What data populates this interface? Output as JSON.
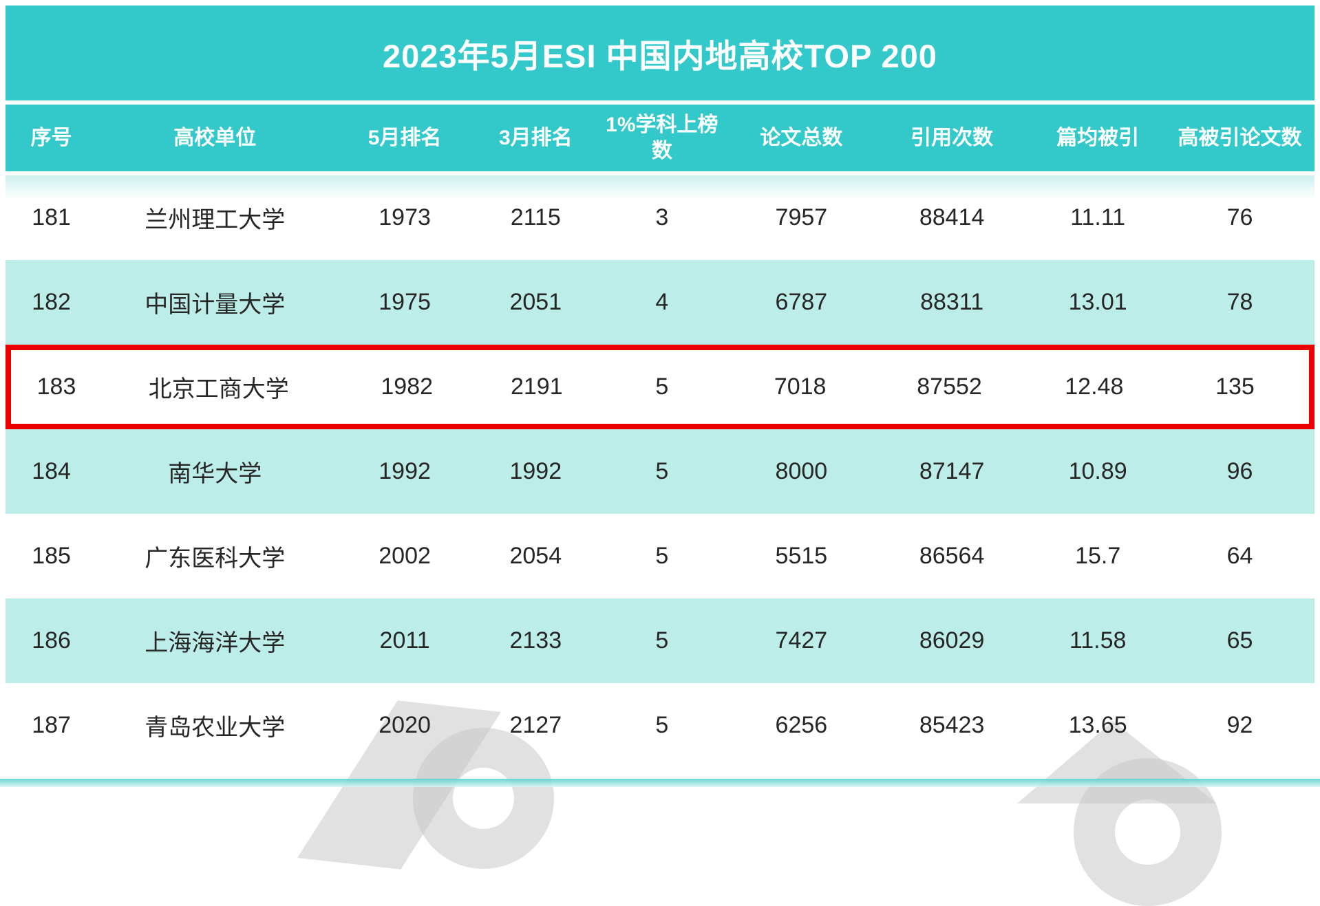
{
  "title": "2023年5月ESI 中国内地高校TOP 200",
  "chart_data": {
    "type": "table",
    "title": "2023年5月ESI 中国内地高校TOP 200",
    "columns": [
      "序号",
      "高校单位",
      "5月排名",
      "3月排名",
      "1%学科上榜数",
      "论文总数",
      "引用次数",
      "篇均被引",
      "高被引论文数"
    ],
    "rows": [
      {
        "cells": [
          "181",
          "兰州理工大学",
          "1973",
          "2115",
          "3",
          "7957",
          "88414",
          "11.11",
          "76"
        ],
        "highlight": false
      },
      {
        "cells": [
          "182",
          "中国计量大学",
          "1975",
          "2051",
          "4",
          "6787",
          "88311",
          "13.01",
          "78"
        ],
        "highlight": false
      },
      {
        "cells": [
          "183",
          "北京工商大学",
          "1982",
          "2191",
          "5",
          "7018",
          "87552",
          "12.48",
          "135"
        ],
        "highlight": true
      },
      {
        "cells": [
          "184",
          "南华大学",
          "1992",
          "1992",
          "5",
          "8000",
          "87147",
          "10.89",
          "96"
        ],
        "highlight": false
      },
      {
        "cells": [
          "185",
          "广东医科大学",
          "2002",
          "2054",
          "5",
          "5515",
          "86564",
          "15.7",
          "64"
        ],
        "highlight": false
      },
      {
        "cells": [
          "186",
          "上海海洋大学",
          "2011",
          "2133",
          "5",
          "7427",
          "86029",
          "11.58",
          "65"
        ],
        "highlight": false
      },
      {
        "cells": [
          "187",
          "青岛农业大学",
          "2020",
          "2127",
          "5",
          "6256",
          "85423",
          "13.65",
          "92"
        ],
        "highlight": false
      }
    ],
    "highlighted_row": "183"
  },
  "colors": {
    "teal_header": "#33C8CA",
    "row_alt_teal": "#BDEDE8",
    "highlight_border": "#EC0000",
    "header_text": "#FFFFFF",
    "cell_text": "#262626",
    "watermark_grey": "#C9C9C9"
  }
}
